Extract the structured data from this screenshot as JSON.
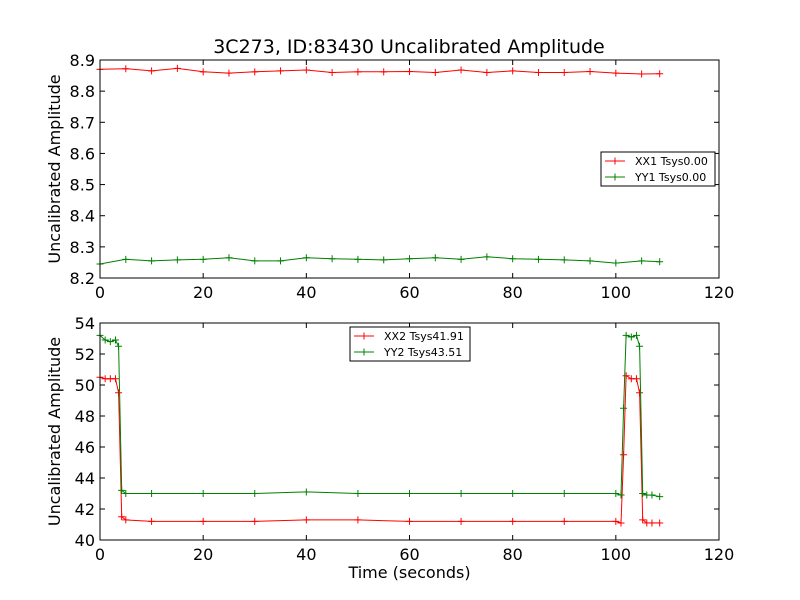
{
  "figure": {
    "title": "3C273, ID:83430 Uncalibrated Amplitude"
  },
  "colors": {
    "XX": "#ff0000",
    "YY": "#008000"
  },
  "chart_data": [
    {
      "type": "line",
      "title": "3C273, ID:83430 Uncalibrated Amplitude",
      "xlabel": "",
      "ylabel": "Uncalibrated Amplitude",
      "xlim": [
        0,
        120
      ],
      "ylim": [
        8.2,
        8.9
      ],
      "xticks": [
        "0",
        "20",
        "40",
        "60",
        "80",
        "100",
        "120"
      ],
      "yticks": [
        "8.2",
        "8.3",
        "8.4",
        "8.5",
        "8.6",
        "8.7",
        "8.8",
        "8.9"
      ],
      "marker": "+",
      "grid": false,
      "legend": "center-right",
      "series": [
        {
          "name": "XX1 Tsys0.00",
          "color": "#ff0000",
          "x": [
            0,
            5,
            10,
            15,
            20,
            25,
            30,
            35,
            40,
            45,
            50,
            55,
            60,
            65,
            70,
            75,
            80,
            85,
            90,
            95,
            100,
            105,
            108.5
          ],
          "values": [
            8.87,
            8.872,
            8.865,
            8.873,
            8.862,
            8.858,
            8.862,
            8.865,
            8.868,
            8.86,
            8.862,
            8.862,
            8.863,
            8.86,
            8.868,
            8.86,
            8.865,
            8.86,
            8.86,
            8.863,
            8.858,
            8.855,
            8.856
          ]
        },
        {
          "name": "YY1 Tsys0.00",
          "color": "#008000",
          "x": [
            0,
            5,
            10,
            15,
            20,
            25,
            30,
            35,
            40,
            45,
            50,
            55,
            60,
            65,
            70,
            75,
            80,
            85,
            90,
            95,
            100,
            105,
            108.5
          ],
          "values": [
            8.245,
            8.26,
            8.255,
            8.258,
            8.26,
            8.265,
            8.255,
            8.255,
            8.265,
            8.262,
            8.26,
            8.258,
            8.262,
            8.265,
            8.26,
            8.268,
            8.262,
            8.26,
            8.258,
            8.255,
            8.248,
            8.255,
            8.252
          ]
        }
      ]
    },
    {
      "type": "line",
      "title": "",
      "xlabel": "Time (seconds)",
      "ylabel": "Uncalibrated Amplitude",
      "xlim": [
        0,
        120
      ],
      "ylim": [
        40,
        54
      ],
      "xticks": [
        "0",
        "20",
        "40",
        "60",
        "80",
        "100",
        "120"
      ],
      "yticks": [
        "40",
        "42",
        "44",
        "46",
        "48",
        "50",
        "52",
        "54"
      ],
      "marker": "+",
      "grid": false,
      "legend": "top-center",
      "series": [
        {
          "name": "XX2 Tsys41.91",
          "color": "#ff0000",
          "x": [
            0,
            1,
            2,
            3,
            3.6,
            4.2,
            5,
            10,
            20,
            30,
            40,
            50,
            60,
            70,
            80,
            90,
            100,
            101,
            101.5,
            102,
            103,
            104,
            104.6,
            105.2,
            106,
            107,
            108.5
          ],
          "values": [
            50.5,
            50.4,
            50.4,
            50.4,
            49.5,
            41.5,
            41.3,
            41.2,
            41.2,
            41.2,
            41.3,
            41.3,
            41.2,
            41.2,
            41.2,
            41.2,
            41.2,
            41.1,
            45.5,
            50.6,
            50.4,
            50.4,
            49.5,
            41.3,
            41.1,
            41.1,
            41.1
          ]
        },
        {
          "name": "YY2 Tsys43.51",
          "color": "#008000",
          "x": [
            0,
            1,
            2,
            3,
            3.6,
            4.2,
            5,
            10,
            20,
            30,
            40,
            50,
            60,
            70,
            80,
            90,
            100,
            101,
            101.5,
            102,
            103,
            104,
            104.6,
            105.2,
            106,
            107,
            108.5
          ],
          "values": [
            53.2,
            52.9,
            52.8,
            52.9,
            52.5,
            43.2,
            43.0,
            43.0,
            43.0,
            43.0,
            43.1,
            43.0,
            43.0,
            43.0,
            43.0,
            43.0,
            43.0,
            42.9,
            48.5,
            53.2,
            53.1,
            53.2,
            52.5,
            43.0,
            42.9,
            42.9,
            42.8
          ]
        }
      ]
    }
  ]
}
